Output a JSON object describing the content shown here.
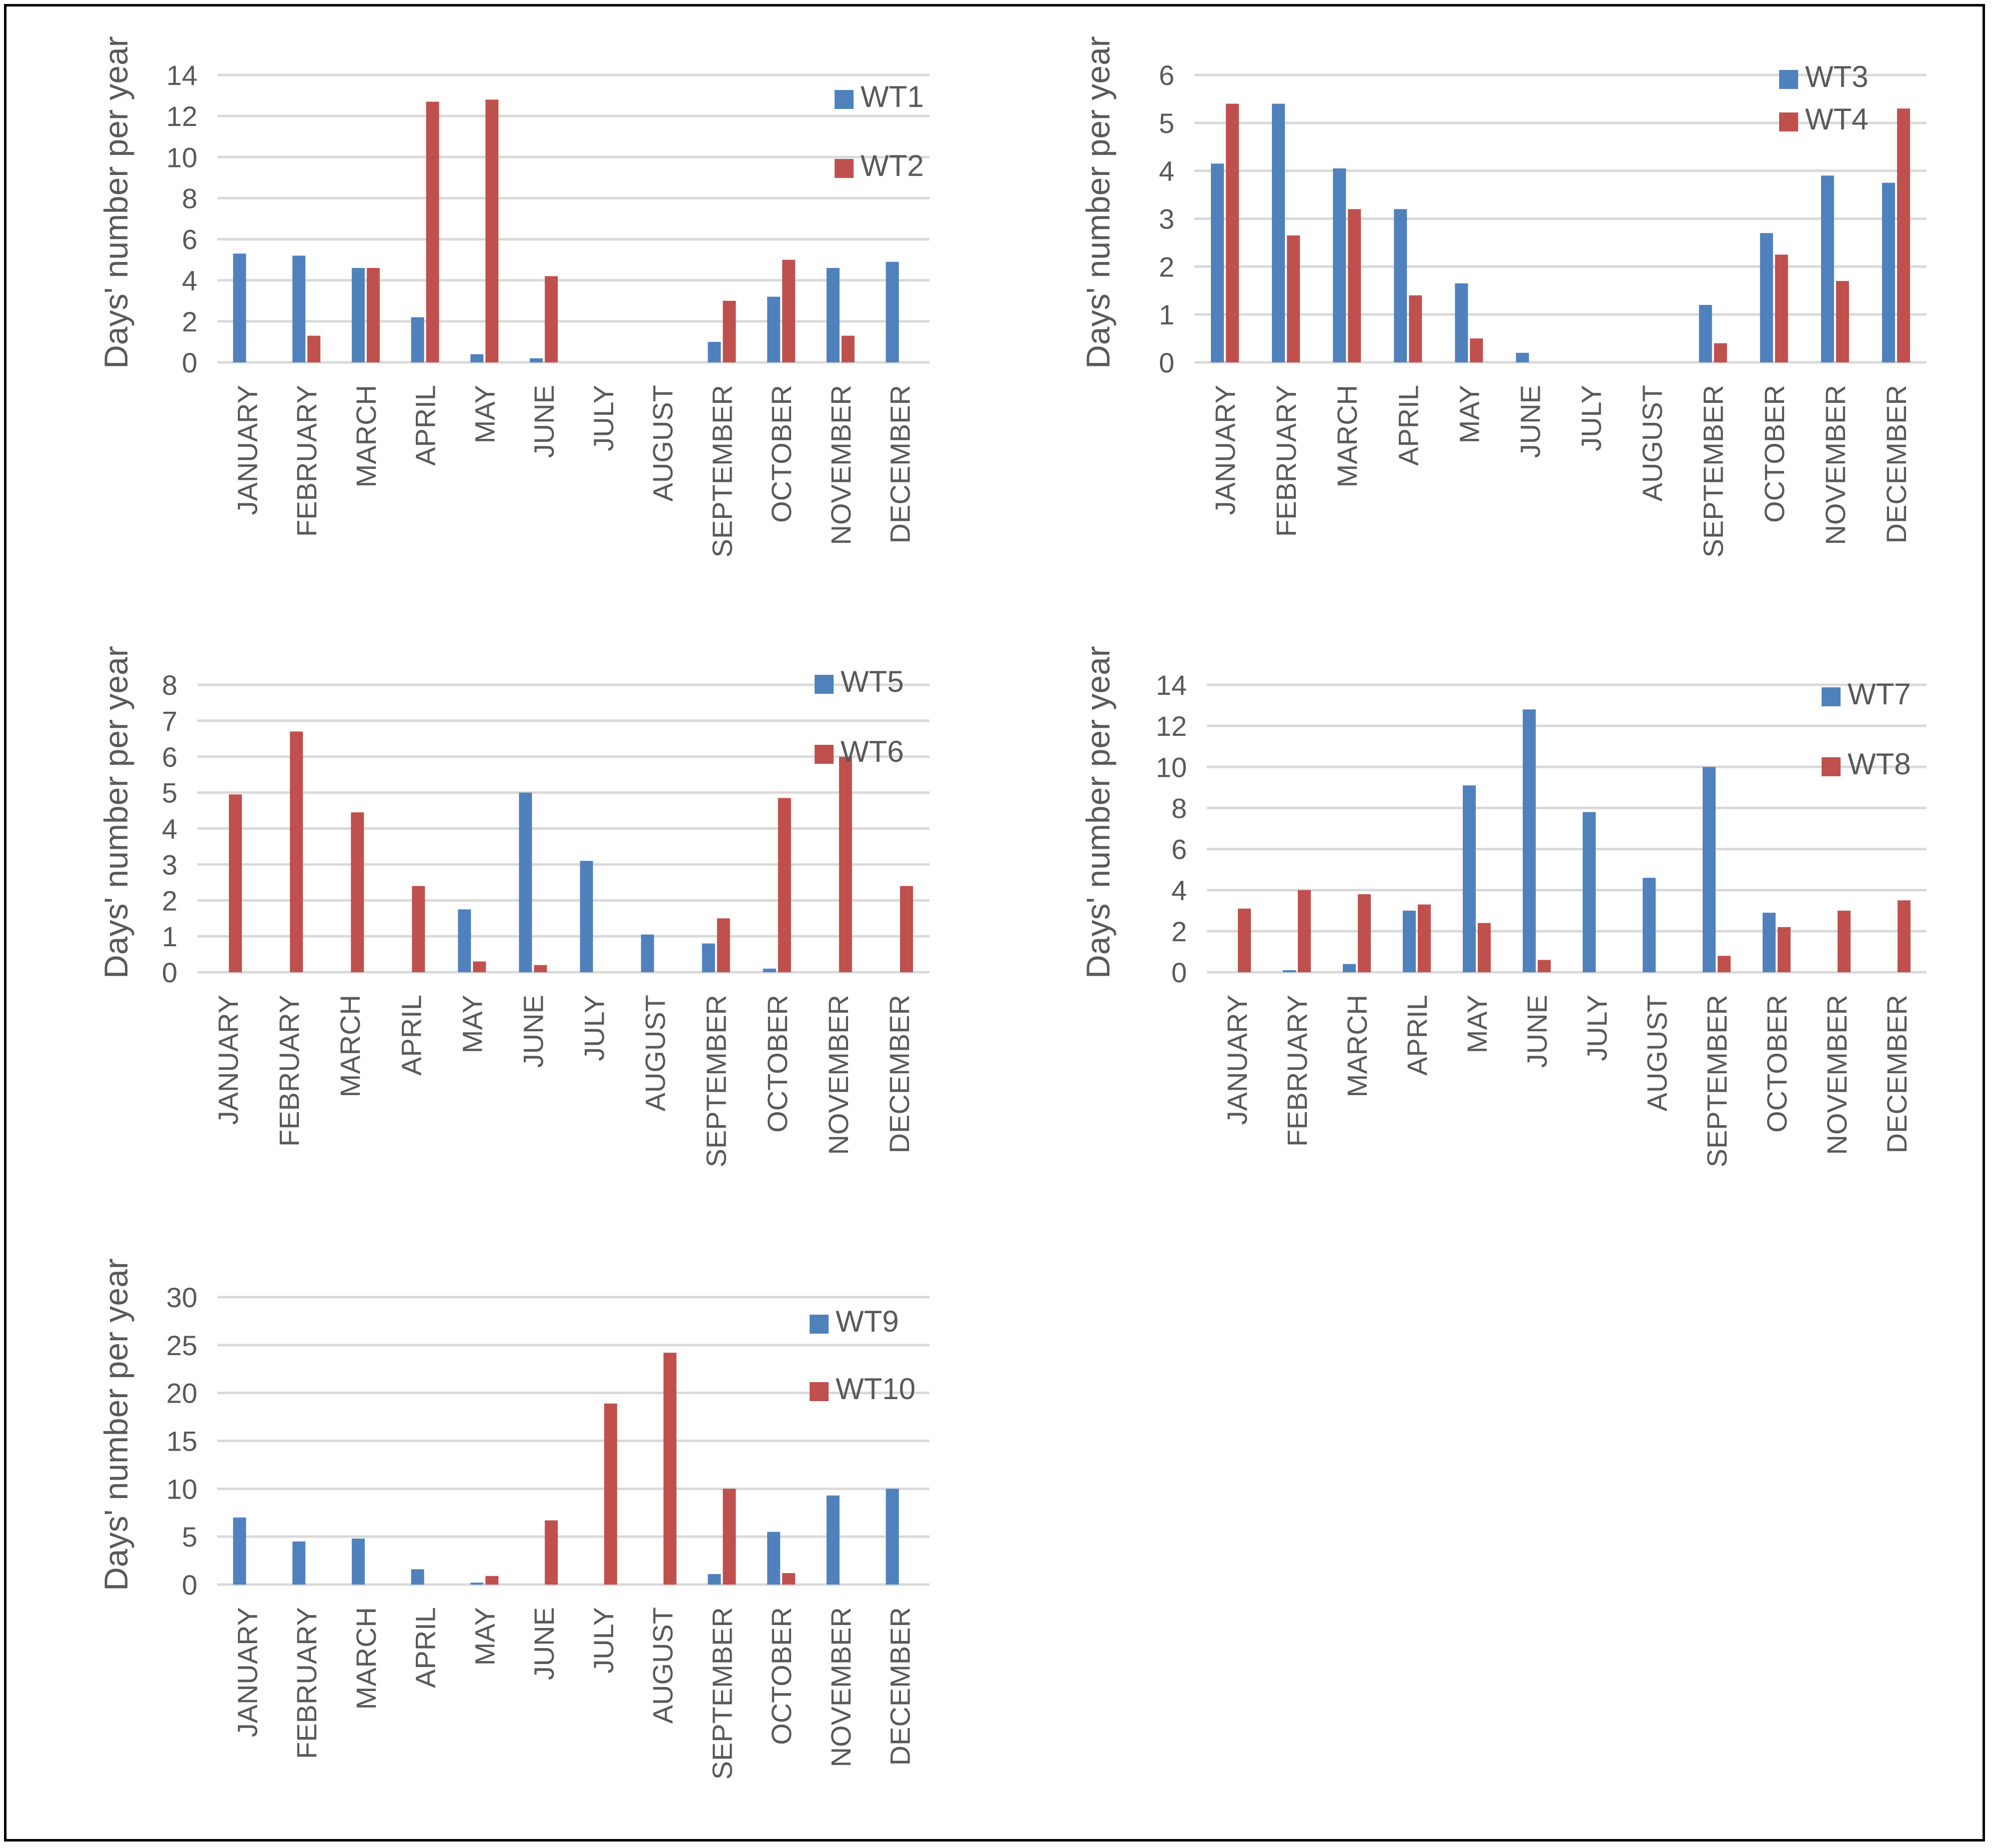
{
  "colors": {
    "series_a": "#4f81bd",
    "series_b": "#c0504d",
    "grid": "#d9d9d9",
    "text": "#595959",
    "frame": "#000000"
  },
  "chart_data": [
    {
      "type": "bar",
      "ylabel": "Days' number per year",
      "ylim": [
        0,
        14
      ],
      "yticks": [
        0,
        2,
        4,
        6,
        8,
        10,
        12,
        14
      ],
      "categories": [
        "JANUARY",
        "FEBRUARY",
        "MARCH",
        "APRIL",
        "MAY",
        "JUNE",
        "JULY",
        "AUGUST",
        "SEPTEMBER",
        "OCTOBER",
        "NOVEMBER",
        "DECEMBER"
      ],
      "legend_position": "top-right",
      "series": [
        {
          "name": "WT1",
          "values": [
            5.3,
            5.2,
            4.6,
            2.2,
            0.4,
            0.2,
            0,
            0,
            1.0,
            3.2,
            4.6,
            4.9
          ]
        },
        {
          "name": "WT2",
          "values": [
            0,
            1.3,
            4.6,
            12.7,
            12.8,
            4.2,
            0,
            0,
            3.0,
            5.0,
            1.3,
            0
          ]
        }
      ]
    },
    {
      "type": "bar",
      "ylabel": "Days' number per year",
      "ylim": [
        0,
        6
      ],
      "yticks": [
        0,
        1,
        2,
        3,
        4,
        5,
        6
      ],
      "categories": [
        "JANUARY",
        "FEBRUARY",
        "MARCH",
        "APRIL",
        "MAY",
        "JUNE",
        "JULY",
        "AUGUST",
        "SEPTEMBER",
        "OCTOBER",
        "NOVEMBER",
        "DECEMBER"
      ],
      "legend_position": "top-right",
      "series": [
        {
          "name": "WT3",
          "values": [
            4.15,
            5.4,
            4.05,
            3.2,
            1.65,
            0.2,
            0,
            0,
            1.2,
            2.7,
            3.9,
            3.75
          ]
        },
        {
          "name": "WT4",
          "values": [
            5.4,
            2.65,
            3.2,
            1.4,
            0.5,
            0,
            0,
            0,
            0.4,
            2.25,
            1.7,
            5.3
          ]
        }
      ]
    },
    {
      "type": "bar",
      "ylabel": "Days' number per year",
      "ylim": [
        0,
        8
      ],
      "yticks": [
        0,
        1,
        2,
        3,
        4,
        5,
        6,
        7,
        8
      ],
      "categories": [
        "JANUARY",
        "FEBRUARY",
        "MARCH",
        "APRIL",
        "MAY",
        "JUNE",
        "JULY",
        "AUGUST",
        "SEPTEMBER",
        "OCTOBER",
        "NOVEMBER",
        "DECEMBER"
      ],
      "legend_position": "top-right",
      "series": [
        {
          "name": "WT5",
          "values": [
            0,
            0,
            0,
            0,
            1.75,
            5.0,
            3.1,
            1.05,
            0.8,
            0.1,
            0,
            0
          ]
        },
        {
          "name": "WT6",
          "values": [
            4.95,
            6.7,
            4.45,
            2.4,
            0.3,
            0.2,
            0,
            0,
            1.5,
            4.85,
            6.0,
            2.4
          ]
        }
      ]
    },
    {
      "type": "bar",
      "ylabel": "Days' number per year",
      "ylim": [
        0,
        14
      ],
      "yticks": [
        0,
        2,
        4,
        6,
        8,
        10,
        12,
        14
      ],
      "categories": [
        "JANUARY",
        "FEBRUARY",
        "MARCH",
        "APRIL",
        "MAY",
        "JUNE",
        "JULY",
        "AUGUST",
        "SEPTEMBER",
        "OCTOBER",
        "NOVEMBER",
        "DECEMBER"
      ],
      "legend_position": "top-right",
      "series": [
        {
          "name": "WT7",
          "values": [
            0,
            0.1,
            0.4,
            3.0,
            9.1,
            12.8,
            7.8,
            4.6,
            10.0,
            2.9,
            0,
            0
          ]
        },
        {
          "name": "WT8",
          "values": [
            3.1,
            4.0,
            3.8,
            3.3,
            2.4,
            0.6,
            0,
            0,
            0.8,
            2.2,
            3.0,
            3.5
          ]
        }
      ]
    },
    {
      "type": "bar",
      "ylabel": "Days' number per year",
      "ylim": [
        0,
        30
      ],
      "yticks": [
        0,
        5,
        10,
        15,
        20,
        25,
        30
      ],
      "categories": [
        "JANUARY",
        "FEBRUARY",
        "MARCH",
        "APRIL",
        "MAY",
        "JUNE",
        "JULY",
        "AUGUST",
        "SEPTEMBER",
        "OCTOBER",
        "NOVEMBER",
        "DECEMBER"
      ],
      "legend_position": "top-right",
      "series": [
        {
          "name": "WT9",
          "values": [
            7.0,
            4.5,
            4.8,
            1.6,
            0.2,
            0,
            0,
            0,
            1.1,
            5.5,
            9.3,
            10.0
          ]
        },
        {
          "name": "WT10",
          "values": [
            0,
            0,
            0,
            0,
            0.9,
            6.7,
            18.9,
            24.2,
            10.0,
            1.2,
            0,
            0
          ]
        }
      ]
    }
  ]
}
